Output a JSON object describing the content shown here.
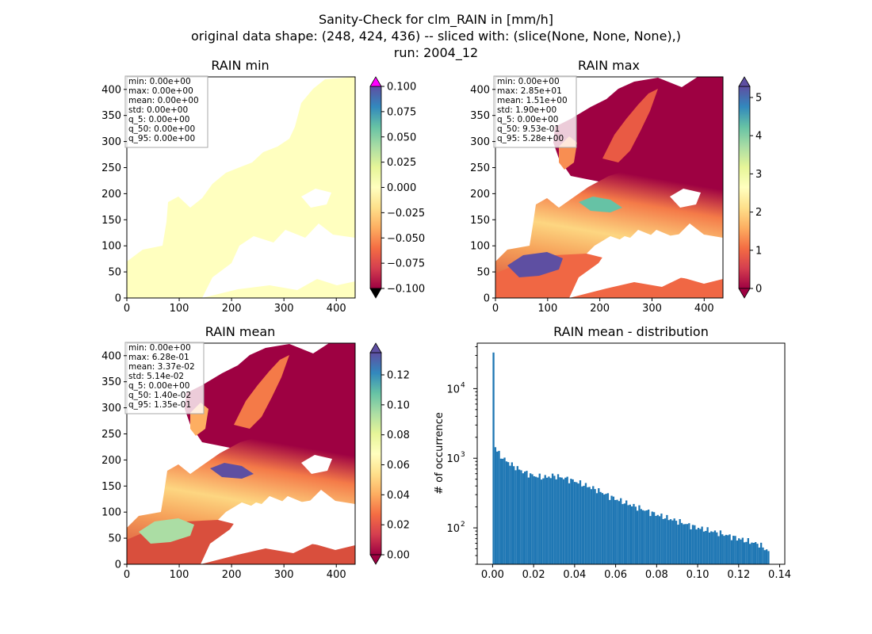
{
  "suptitle": [
    "Sanity-Check for clm_RAIN in [mm/h]",
    "original data shape: (248, 424, 436) -- sliced with: (slice(None, None, None),)",
    "run: 2004_12"
  ],
  "colors": {
    "ocean_fill": "#ffffff",
    "land_low": "#9e0142",
    "bar": "#1f77b4",
    "over_min": "#ff00ff",
    "under_min": "#000000",
    "const_field": "#ffffbf"
  },
  "chart_data": [
    {
      "type": "heatmap",
      "title": "RAIN min",
      "xlim": [
        0,
        436
      ],
      "ylim": [
        0,
        424
      ],
      "xticks": [
        0,
        100,
        200,
        300,
        400
      ],
      "yticks": [
        0,
        50,
        100,
        150,
        200,
        250,
        300,
        350,
        400
      ],
      "stats": [
        "min: 0.00e+00",
        "max: 0.00e+00",
        "mean: 0.00e+00",
        "std: 0.00e+00",
        "q_5: 0.00e+00",
        "q_50: 0.00e+00",
        "q_95: 0.00e+00"
      ],
      "colorbar": {
        "vmin": -0.1,
        "vmax": 0.1,
        "ticks": [
          "0.100",
          "0.075",
          "0.050",
          "0.025",
          "0.000",
          "−0.025",
          "−0.050",
          "−0.075",
          "−0.100"
        ],
        "extend": "both"
      }
    },
    {
      "type": "heatmap",
      "title": "RAIN max",
      "xlim": [
        0,
        436
      ],
      "ylim": [
        0,
        424
      ],
      "xticks": [
        0,
        100,
        200,
        300,
        400
      ],
      "yticks": [
        0,
        50,
        100,
        150,
        200,
        250,
        300,
        350,
        400
      ],
      "stats": [
        "min: 0.00e+00",
        "max: 2.85e+01",
        "mean: 1.51e+00",
        "std: 1.90e+00",
        "q_5: 0.00e+00",
        "q_50: 9.53e-01",
        "q_95: 5.28e+00"
      ],
      "colorbar": {
        "vmin": 0,
        "vmax": 5.4,
        "ticks": [
          "5",
          "4",
          "3",
          "2",
          "1",
          "0"
        ],
        "extend": "both"
      }
    },
    {
      "type": "heatmap",
      "title": "RAIN mean",
      "xlim": [
        0,
        436
      ],
      "ylim": [
        0,
        424
      ],
      "xticks": [
        0,
        100,
        200,
        300,
        400
      ],
      "yticks": [
        0,
        50,
        100,
        150,
        200,
        250,
        300,
        350,
        400
      ],
      "stats": [
        "min: 0.00e+00",
        "max: 6.28e-01",
        "mean: 3.37e-02",
        "std: 5.14e-02",
        "q_5: 0.00e+00",
        "q_50: 1.40e-02",
        "q_95: 1.35e-01"
      ],
      "colorbar": {
        "vmin": 0,
        "vmax": 0.138,
        "ticks": [
          "0.12",
          "0.10",
          "0.08",
          "0.06",
          "0.04",
          "0.02",
          "0.00"
        ],
        "extend": "both"
      }
    },
    {
      "type": "bar",
      "title": "RAIN mean - distribution",
      "ylabel": "# of occurrence",
      "xlabel": "",
      "yscale": "log",
      "xlim": [
        -0.0075,
        0.1425
      ],
      "ylim": [
        30,
        45000
      ],
      "xticks": [
        "0.00",
        "0.02",
        "0.04",
        "0.06",
        "0.08",
        "0.10",
        "0.12",
        "0.14"
      ],
      "bin_range": [
        0.0,
        0.135
      ],
      "bins": 150,
      "anchors": {
        "x": [
          0.0,
          0.0009,
          0.0018,
          0.0036,
          0.006,
          0.01,
          0.015,
          0.02,
          0.025,
          0.03,
          0.035,
          0.04,
          0.05,
          0.06,
          0.07,
          0.08,
          0.09,
          0.1,
          0.11,
          0.12,
          0.13,
          0.135
        ],
        "y": [
          33000,
          1600,
          1300,
          1100,
          950,
          780,
          640,
          560,
          530,
          560,
          520,
          470,
          360,
          260,
          200,
          155,
          125,
          100,
          85,
          70,
          58,
          45
        ]
      }
    }
  ]
}
